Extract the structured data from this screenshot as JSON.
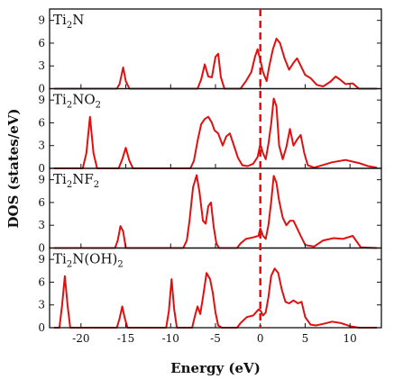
{
  "chart_data": {
    "type": "line",
    "xlabel": "Energy (eV)",
    "ylabel": "DOS (states/eV)",
    "xlim": [
      -23.5,
      13.5
    ],
    "ylim": [
      0,
      10.5
    ],
    "x_ticks": [
      -20,
      -15,
      -10,
      -5,
      0,
      5,
      10
    ],
    "y_ticks": [
      0,
      3,
      6,
      9
    ],
    "fermi_level": 0,
    "colors": {
      "curve": "#e01010",
      "fermi": "#e01010",
      "axes": "#111111"
    },
    "grid": false,
    "panels": [
      {
        "label_main": "Ti",
        "label_sub1": "2",
        "label_mid": "N",
        "label_sub2": "",
        "label_tail": "",
        "points": [
          [
            -23,
            0
          ],
          [
            -16,
            0
          ],
          [
            -15.7,
            0.6
          ],
          [
            -15.3,
            2.8
          ],
          [
            -15.0,
            1.0
          ],
          [
            -14.6,
            0
          ],
          [
            -7,
            0
          ],
          [
            -6.6,
            1.2
          ],
          [
            -6.2,
            3.2
          ],
          [
            -5.8,
            1.6
          ],
          [
            -5.4,
            1.5
          ],
          [
            -5.0,
            4.2
          ],
          [
            -4.7,
            4.6
          ],
          [
            -4.4,
            1.5
          ],
          [
            -4.0,
            0
          ],
          [
            -2.2,
            0
          ],
          [
            -1.6,
            1.0
          ],
          [
            -1.0,
            2.2
          ],
          [
            -0.6,
            4.2
          ],
          [
            -0.3,
            5.2
          ],
          [
            0.0,
            3.8
          ],
          [
            0.3,
            2.2
          ],
          [
            0.7,
            1.0
          ],
          [
            1.0,
            3.0
          ],
          [
            1.4,
            5.2
          ],
          [
            1.8,
            6.6
          ],
          [
            2.2,
            6.0
          ],
          [
            2.7,
            4.0
          ],
          [
            3.2,
            2.5
          ],
          [
            3.7,
            3.4
          ],
          [
            4.1,
            4.0
          ],
          [
            4.6,
            2.8
          ],
          [
            5.0,
            1.8
          ],
          [
            5.6,
            1.4
          ],
          [
            6.3,
            0.5
          ],
          [
            7.0,
            0.3
          ],
          [
            7.8,
            0.9
          ],
          [
            8.4,
            1.6
          ],
          [
            8.9,
            1.2
          ],
          [
            9.5,
            0.6
          ],
          [
            10.3,
            0.7
          ],
          [
            11,
            0
          ],
          [
            13,
            0
          ]
        ]
      },
      {
        "label_main": "Ti",
        "label_sub1": "2",
        "label_mid": "NO",
        "label_sub2": "2",
        "label_tail": "",
        "points": [
          [
            -23,
            0
          ],
          [
            -19.8,
            0
          ],
          [
            -19.4,
            2.0
          ],
          [
            -19.0,
            6.8
          ],
          [
            -18.6,
            2.0
          ],
          [
            -18.2,
            0
          ],
          [
            -15.8,
            0
          ],
          [
            -15.4,
            1.2
          ],
          [
            -15.0,
            2.7
          ],
          [
            -14.6,
            1.0
          ],
          [
            -14.2,
            0
          ],
          [
            -7.8,
            0
          ],
          [
            -7.4,
            1.0
          ],
          [
            -7.0,
            3.6
          ],
          [
            -6.6,
            5.8
          ],
          [
            -6.2,
            6.5
          ],
          [
            -5.8,
            6.8
          ],
          [
            -5.4,
            6.0
          ],
          [
            -5.1,
            5.0
          ],
          [
            -4.7,
            4.6
          ],
          [
            -4.2,
            3.0
          ],
          [
            -3.8,
            4.2
          ],
          [
            -3.4,
            4.6
          ],
          [
            -3.0,
            3.2
          ],
          [
            -2.5,
            1.4
          ],
          [
            -2.0,
            0.4
          ],
          [
            -1.4,
            0.3
          ],
          [
            -0.8,
            0.6
          ],
          [
            -0.3,
            1.5
          ],
          [
            0.0,
            3.2
          ],
          [
            0.3,
            2.0
          ],
          [
            0.6,
            1.2
          ],
          [
            0.9,
            3.2
          ],
          [
            1.2,
            5.8
          ],
          [
            1.5,
            9.2
          ],
          [
            1.8,
            8.2
          ],
          [
            2.1,
            3.0
          ],
          [
            2.5,
            1.2
          ],
          [
            2.9,
            2.8
          ],
          [
            3.3,
            5.2
          ],
          [
            3.7,
            3.0
          ],
          [
            4.1,
            3.8
          ],
          [
            4.5,
            4.4
          ],
          [
            4.9,
            2.0
          ],
          [
            5.3,
            0.4
          ],
          [
            6.0,
            0.1
          ],
          [
            8,
            0.8
          ],
          [
            9.5,
            1.1
          ],
          [
            11,
            0.7
          ],
          [
            12,
            0.3
          ],
          [
            13,
            0.1
          ]
        ]
      },
      {
        "label_main": "Ti",
        "label_sub1": "2",
        "label_mid": "NF",
        "label_sub2": "2",
        "label_tail": "",
        "points": [
          [
            -23,
            0
          ],
          [
            -16.2,
            0
          ],
          [
            -15.9,
            1.0
          ],
          [
            -15.6,
            2.9
          ],
          [
            -15.3,
            2.2
          ],
          [
            -15.0,
            0
          ],
          [
            -8.6,
            0
          ],
          [
            -8.2,
            1.0
          ],
          [
            -7.9,
            3.6
          ],
          [
            -7.5,
            8.0
          ],
          [
            -7.1,
            9.6
          ],
          [
            -6.8,
            7.5
          ],
          [
            -6.4,
            3.6
          ],
          [
            -6.1,
            3.2
          ],
          [
            -5.8,
            5.5
          ],
          [
            -5.5,
            6.0
          ],
          [
            -5.2,
            2.8
          ],
          [
            -4.9,
            0.6
          ],
          [
            -4.6,
            0
          ],
          [
            -2.6,
            0
          ],
          [
            -2.2,
            0.6
          ],
          [
            -1.6,
            1.2
          ],
          [
            -0.8,
            1.4
          ],
          [
            -0.2,
            1.6
          ],
          [
            0.0,
            2.6
          ],
          [
            0.3,
            1.6
          ],
          [
            0.6,
            1.2
          ],
          [
            0.9,
            3.0
          ],
          [
            1.2,
            6.0
          ],
          [
            1.5,
            9.5
          ],
          [
            1.8,
            8.6
          ],
          [
            2.1,
            6.2
          ],
          [
            2.5,
            4.0
          ],
          [
            2.9,
            3.0
          ],
          [
            3.3,
            3.6
          ],
          [
            3.7,
            3.6
          ],
          [
            4.1,
            2.6
          ],
          [
            4.5,
            1.6
          ],
          [
            5.0,
            0.4
          ],
          [
            6.0,
            0.2
          ],
          [
            7.0,
            1.0
          ],
          [
            8.2,
            1.3
          ],
          [
            9.2,
            1.2
          ],
          [
            10.3,
            1.6
          ],
          [
            11.2,
            0.1
          ],
          [
            13,
            0
          ]
        ]
      },
      {
        "label_main": "Ti",
        "label_sub1": "2",
        "label_mid": "N(OH)",
        "label_sub2": "2",
        "label_tail": "",
        "points": [
          [
            -23,
            0
          ],
          [
            -22.4,
            0
          ],
          [
            -22.1,
            3.0
          ],
          [
            -21.8,
            6.8
          ],
          [
            -21.5,
            3.0
          ],
          [
            -21.2,
            0
          ],
          [
            -16.0,
            0
          ],
          [
            -15.7,
            1.2
          ],
          [
            -15.4,
            2.8
          ],
          [
            -15.1,
            1.2
          ],
          [
            -14.8,
            0
          ],
          [
            -10.5,
            0
          ],
          [
            -10.2,
            2.2
          ],
          [
            -9.9,
            6.4
          ],
          [
            -9.6,
            2.4
          ],
          [
            -9.3,
            0
          ],
          [
            -7.6,
            0
          ],
          [
            -7.3,
            1.5
          ],
          [
            -7.0,
            2.8
          ],
          [
            -6.7,
            1.8
          ],
          [
            -6.4,
            4.0
          ],
          [
            -6.0,
            7.2
          ],
          [
            -5.6,
            6.4
          ],
          [
            -5.3,
            4.6
          ],
          [
            -5.0,
            2.0
          ],
          [
            -4.7,
            0.3
          ],
          [
            -4.3,
            0
          ],
          [
            -2.6,
            0
          ],
          [
            -2.2,
            0.6
          ],
          [
            -1.5,
            1.4
          ],
          [
            -0.8,
            1.6
          ],
          [
            -0.2,
            2.4
          ],
          [
            0.0,
            2.3
          ],
          [
            0.3,
            1.6
          ],
          [
            0.6,
            2.0
          ],
          [
            0.9,
            4.0
          ],
          [
            1.2,
            6.8
          ],
          [
            1.6,
            7.8
          ],
          [
            2.0,
            7.2
          ],
          [
            2.4,
            5.0
          ],
          [
            2.8,
            3.4
          ],
          [
            3.2,
            3.2
          ],
          [
            3.7,
            3.6
          ],
          [
            4.2,
            3.2
          ],
          [
            4.6,
            3.4
          ],
          [
            5.0,
            1.4
          ],
          [
            5.6,
            0.4
          ],
          [
            6.2,
            0.3
          ],
          [
            7.0,
            0.5
          ],
          [
            8.0,
            0.8
          ],
          [
            9.0,
            0.6
          ],
          [
            10.0,
            0.2
          ],
          [
            11,
            0
          ],
          [
            13,
            0
          ]
        ]
      }
    ]
  }
}
